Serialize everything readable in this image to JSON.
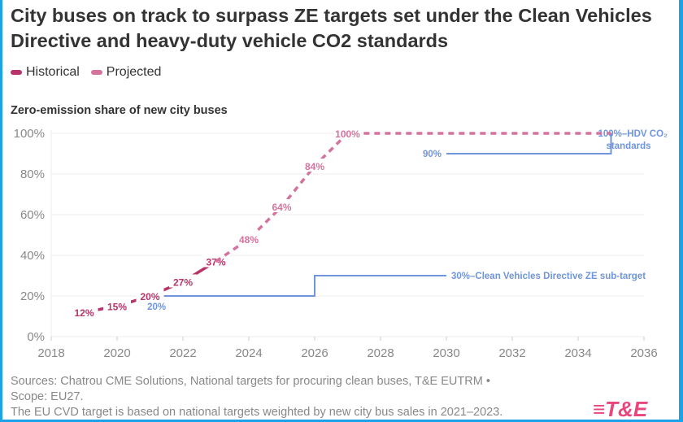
{
  "title": "City buses on track to surpass ZE targets set under the Clean Vehicles Directive and heavy-duty vehicle CO2 standards",
  "legend": [
    {
      "label": "Historical",
      "color": "#b8336a"
    },
    {
      "label": "Projected",
      "color": "#d4749e"
    }
  ],
  "subtitle": "Zero-emission share of new city buses",
  "chart_data": {
    "type": "line",
    "ylabel": "Zero-emission share of new city buses",
    "xlim": [
      2018,
      2036
    ],
    "ylim": [
      0,
      100
    ],
    "xticks": [
      "2018",
      "2020",
      "2022",
      "2024",
      "2026",
      "2028",
      "2030",
      "2032",
      "2034",
      "2036"
    ],
    "yticks": [
      "0%",
      "20%",
      "40%",
      "60%",
      "80%",
      "100%"
    ],
    "grid": true,
    "series": [
      {
        "name": "Historical",
        "color": "#b8336a",
        "style": "solid",
        "points": [
          [
            2019,
            12
          ],
          [
            2020,
            15
          ],
          [
            2021,
            20
          ],
          [
            2022,
            27
          ],
          [
            2023,
            37
          ]
        ],
        "labels": [
          "12%",
          "15%",
          "20%",
          "27%",
          "37%"
        ]
      },
      {
        "name": "Projected",
        "color": "#d4749e",
        "style": "dashed",
        "points": [
          [
            2023,
            37
          ],
          [
            2024,
            48
          ],
          [
            2025,
            64
          ],
          [
            2026,
            84
          ],
          [
            2027,
            100
          ],
          [
            2035,
            100
          ]
        ],
        "labels": [
          "",
          "48%",
          "64%",
          "84%",
          "100%",
          ""
        ]
      }
    ],
    "targets": [
      {
        "color": "#6f95dc",
        "points": [
          [
            2021.3,
            20
          ],
          [
            2026,
            20
          ],
          [
            2026,
            30
          ],
          [
            2030,
            30
          ]
        ],
        "start_label": "20%",
        "end_label": "30%–Clean Vehicles Directive ZE sub-target"
      },
      {
        "color": "#6f95dc",
        "points": [
          [
            2030,
            90
          ],
          [
            2035,
            90
          ],
          [
            2035,
            100
          ]
        ],
        "start_label": "90%",
        "end_label": "100%–HDV CO₂",
        "end_label_2": "standards"
      }
    ]
  },
  "notes": [
    "Sources: Chatrou CME Solutions, National targets for procuring clean buses, T&E EUTRM •",
    "Scope: EU27.",
    "The EU CVD target is based on national targets weighted by new city bus sales in 2021–2023."
  ],
  "logo": "T&E"
}
